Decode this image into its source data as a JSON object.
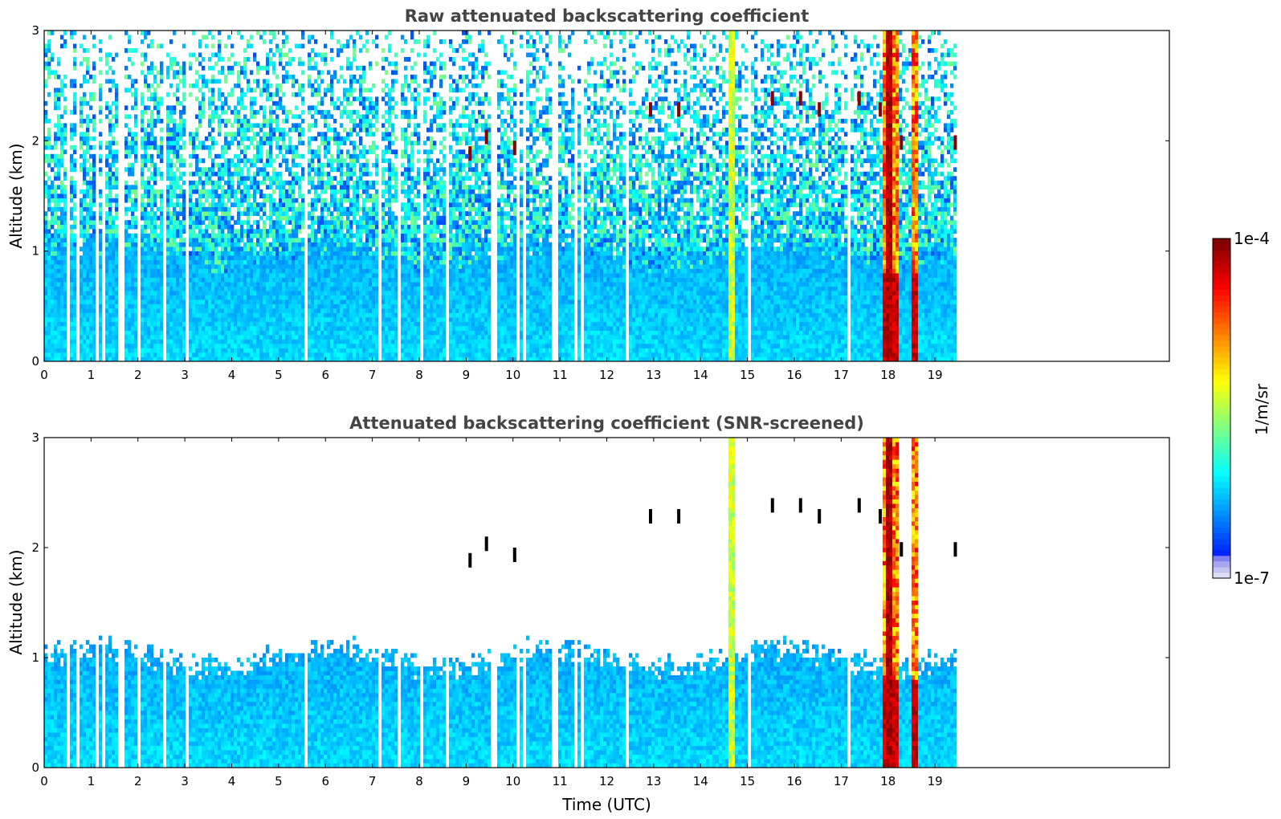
{
  "chart_data": [
    {
      "type": "heatmap",
      "title": "Raw attenuated backscattering coefficient",
      "xlabel": "",
      "ylabel": "Altitude (km)",
      "xlim": [
        0,
        24
      ],
      "ylim": [
        0,
        3
      ],
      "x_ticks": [
        "0",
        "1",
        "2",
        "3",
        "4",
        "5",
        "6",
        "7",
        "8",
        "9",
        "10",
        "11",
        "12",
        "13",
        "14",
        "15",
        "16",
        "17",
        "18",
        "19"
      ],
      "y_ticks": [
        "0",
        "1",
        "2",
        "3"
      ],
      "data_extent_x": [
        0,
        19.45
      ],
      "screened": false
    },
    {
      "type": "heatmap",
      "title": "Attenuated backscattering coefficient (SNR-screened)",
      "xlabel": "Time (UTC)",
      "ylabel": "Altitude (km)",
      "xlim": [
        0,
        24
      ],
      "ylim": [
        0,
        3
      ],
      "x_ticks": [
        "0",
        "1",
        "2",
        "3",
        "4",
        "5",
        "6",
        "7",
        "8",
        "9",
        "10",
        "11",
        "12",
        "13",
        "14",
        "15",
        "16",
        "17",
        "18",
        "19"
      ],
      "y_ticks": [
        "0",
        "1",
        "2",
        "3"
      ],
      "data_extent_x": [
        0,
        19.45
      ],
      "screened": true
    }
  ],
  "colorbar": {
    "label": "1/m/sr",
    "max_label": "1e-4",
    "min_label": "1e-7",
    "scale": "log",
    "colormap": "jet"
  },
  "features": {
    "column_gaps_hours": [
      0.5,
      0.68,
      1.12,
      1.22,
      1.55,
      1.62,
      2.0,
      2.55,
      3.02,
      5.55,
      7.1,
      7.55,
      8.0,
      8.55,
      9.55,
      9.62,
      10.1,
      10.2,
      10.85,
      10.9,
      11.3,
      11.45,
      12.4,
      15.0,
      17.1
    ],
    "precipitation_shafts_hours": [
      [
        17.87,
        18.02
      ],
      [
        18.02,
        18.2
      ],
      [
        18.45,
        18.6
      ]
    ],
    "aerosol_layer_top_km": 1.0
  }
}
